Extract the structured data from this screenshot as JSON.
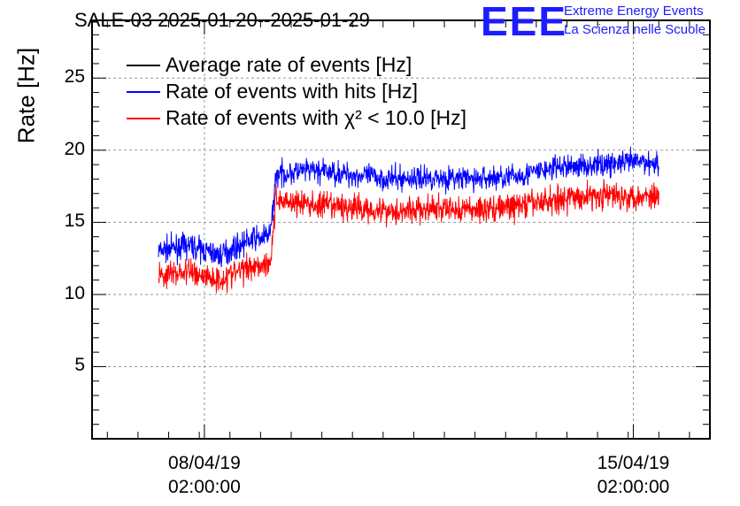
{
  "header": {
    "title": "SALE-03 2025-01-20--2025-01-29",
    "logo_text": "EEE",
    "logo_line1": "Extreme Energy Events",
    "logo_line2": "La Scienza nelle Scuole"
  },
  "chart_data": {
    "type": "line",
    "title": "SALE-03 2025-01-20--2025-01-29",
    "xlabel": "",
    "ylabel": "Rate [Hz]",
    "ylim": [
      0,
      29
    ],
    "y_ticks": [
      "5",
      "10",
      "15",
      "20",
      "25"
    ],
    "y_tick_values": [
      5,
      10,
      15,
      20,
      25
    ],
    "x_tick_labels": [
      "08/04/19\n02:00:00",
      "15/04/19\n02:00:00"
    ],
    "x_tick_values": [
      "2019-04-08 02:00:00",
      "2019-04-15 02:00:00"
    ],
    "xlim": [
      "2019-04-06 06:00:00",
      "2019-04-16 08:00:00"
    ],
    "grid": true,
    "legend_position": "top-left",
    "legend": [
      {
        "label": "Average rate of events [Hz]",
        "color": "#000000"
      },
      {
        "label": "Rate of events with hits [Hz]",
        "color": "#0000ff"
      },
      {
        "label": "Rate of events with χ² < 10.0 [Hz]",
        "color": "#ff0000"
      }
    ],
    "series": [
      {
        "name": "Rate of events with hits [Hz]",
        "color": "#0000ff",
        "x": [
          "2019-04-07 08:00",
          "2019-04-07 20:00",
          "2019-04-08 08:00",
          "2019-04-08 20:00",
          "2019-04-09 02:00",
          "2019-04-09 04:00",
          "2019-04-09 06:00",
          "2019-04-09 20:00",
          "2019-04-10 12:00",
          "2019-04-11 04:00",
          "2019-04-11 20:00",
          "2019-04-12 12:00",
          "2019-04-13 04:00",
          "2019-04-13 20:00",
          "2019-04-14 12:00",
          "2019-04-15 04:00",
          "2019-04-15 12:00"
        ],
        "y": [
          13.0,
          13.4,
          12.7,
          13.8,
          14.0,
          14.3,
          18.3,
          18.6,
          18.3,
          18.0,
          18.1,
          18.0,
          18.2,
          18.8,
          19.0,
          19.2,
          19.1
        ]
      },
      {
        "name": "Rate of events with χ² < 10.0 [Hz]",
        "color": "#ff0000",
        "x": [
          "2019-04-07 08:00",
          "2019-04-07 20:00",
          "2019-04-08 08:00",
          "2019-04-08 20:00",
          "2019-04-09 02:00",
          "2019-04-09 04:00",
          "2019-04-09 06:00",
          "2019-04-09 20:00",
          "2019-04-10 12:00",
          "2019-04-11 04:00",
          "2019-04-11 20:00",
          "2019-04-12 12:00",
          "2019-04-13 04:00",
          "2019-04-13 20:00",
          "2019-04-14 12:00",
          "2019-04-15 04:00",
          "2019-04-15 12:00"
        ],
        "y": [
          11.3,
          11.6,
          11.0,
          12.0,
          12.1,
          12.4,
          16.6,
          16.2,
          16.0,
          15.8,
          15.9,
          15.9,
          16.1,
          16.6,
          16.9,
          16.8,
          16.9
        ]
      }
    ]
  }
}
